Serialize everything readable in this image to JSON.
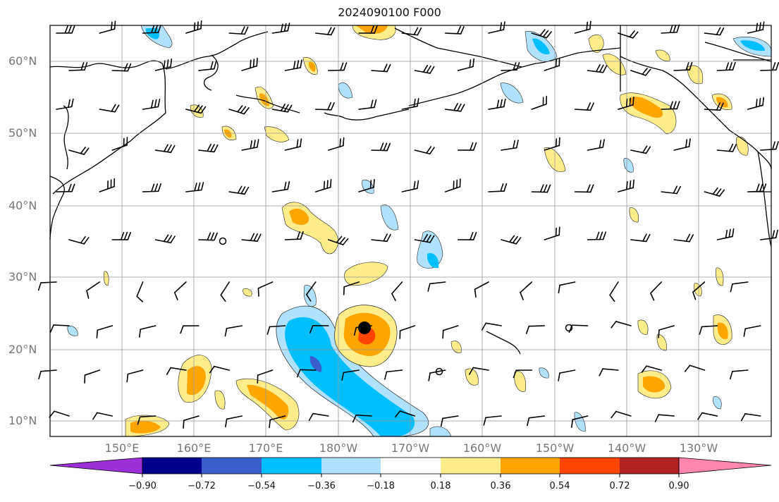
{
  "title": "2024090100 F000",
  "map": {
    "lat_labels": [
      "60°N",
      "50°N",
      "40°N",
      "30°N",
      "20°N",
      "10°N"
    ],
    "lon_labels": [
      "150°E",
      "160°E",
      "170°E",
      "180°W",
      "170°W",
      "160°W",
      "150°W",
      "140°W",
      "130°W"
    ],
    "projection": "cylindrical",
    "extent": {
      "lon_min": 140,
      "lon_max": 240,
      "lat_min": 8,
      "lat_max": 65
    },
    "storm_center_marker": {
      "lon": 184,
      "lat": 23
    },
    "field": "vorticity-like shaded anomaly with wind barbs",
    "gridlines": true
  },
  "colorbar": {
    "labels": [
      "−0.90",
      "−0.72",
      "−0.54",
      "−0.36",
      "−0.18",
      "0.18",
      "0.36",
      "0.54",
      "0.72",
      "0.90"
    ],
    "colors": [
      "#9b30d9",
      "#00008b",
      "#3a5fcd",
      "#00bfff",
      "#b0e2ff",
      "#ffffff",
      "#ffec8b",
      "#ffa500",
      "#ff4500",
      "#b22222",
      "#ff86b0"
    ],
    "extend": "both"
  }
}
